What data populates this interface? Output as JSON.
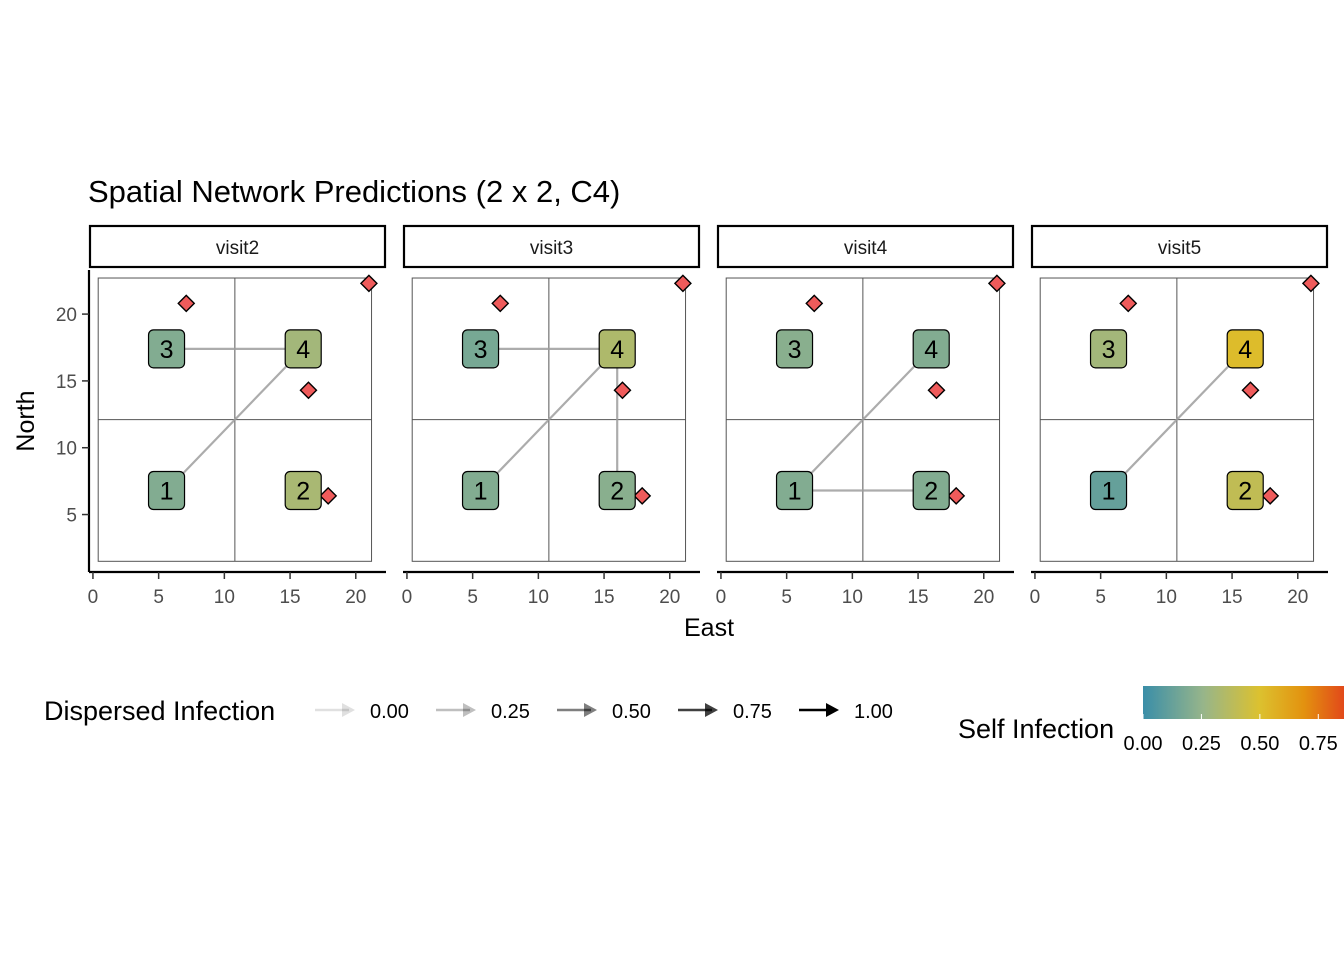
{
  "chart_data": {
    "type": "network",
    "title": "Spatial Network Predictions (2 x 2, C4)",
    "xlabel": "East",
    "ylabel": "North",
    "xlim": [
      -0.3,
      22.3
    ],
    "ylim": [
      0.7,
      23.3
    ],
    "x_ticks": [
      0,
      5,
      10,
      15,
      20
    ],
    "y_ticks": [
      5,
      10,
      15,
      20
    ],
    "grid_boundaries": {
      "x": [
        0.4,
        10.8,
        21.2
      ],
      "y": [
        1.5,
        12.1,
        22.7
      ]
    },
    "nodes": [
      {
        "id": "1",
        "x": 5.6,
        "y": 6.8
      },
      {
        "id": "2",
        "x": 16.0,
        "y": 6.8
      },
      {
        "id": "3",
        "x": 5.6,
        "y": 17.4
      },
      {
        "id": "4",
        "x": 16.0,
        "y": 17.4
      }
    ],
    "diamonds": [
      {
        "x": 7.1,
        "y": 20.8
      },
      {
        "x": 21.0,
        "y": 22.3
      },
      {
        "x": 16.4,
        "y": 14.3
      },
      {
        "x": 17.9,
        "y": 6.4
      }
    ],
    "facets": [
      {
        "label": "visit2",
        "self_infection": {
          "1": 0.2,
          "2": 0.32,
          "3": 0.2,
          "4": 0.3
        },
        "edges": [
          {
            "from": "4",
            "to": "3",
            "value": 0.25
          },
          {
            "from": "4",
            "to": "1",
            "value": 0.25
          }
        ]
      },
      {
        "label": "visit3",
        "self_infection": {
          "1": 0.2,
          "2": 0.22,
          "3": 0.17,
          "4": 0.34
        },
        "edges": [
          {
            "from": "4",
            "to": "3",
            "value": 0.25
          },
          {
            "from": "4",
            "to": "1",
            "value": 0.25
          },
          {
            "from": "4",
            "to": "2",
            "value": 0.25
          }
        ]
      },
      {
        "label": "visit4",
        "self_infection": {
          "1": 0.2,
          "2": 0.2,
          "3": 0.22,
          "4": 0.2
        },
        "edges": [
          {
            "from": "1",
            "to": "4",
            "value": 0.25
          },
          {
            "from": "1",
            "to": "2",
            "value": 0.25
          }
        ]
      },
      {
        "label": "visit5",
        "self_infection": {
          "1": 0.12,
          "2": 0.4,
          "3": 0.3,
          "4": 0.52
        },
        "edges": [
          {
            "from": "4",
            "to": "1",
            "value": 0.25
          }
        ]
      }
    ],
    "legend_dispersed": {
      "title": "Dispersed Infection",
      "entries": [
        "0.00",
        "0.25",
        "0.50",
        "0.75",
        "1.00"
      ],
      "values": [
        0.0,
        0.25,
        0.5,
        0.75,
        1.0
      ]
    },
    "legend_self": {
      "title": "Self Infection",
      "ticks": [
        "0.00",
        "0.25",
        "0.50",
        "0.75"
      ],
      "tick_values": [
        0.0,
        0.25,
        0.5,
        0.75
      ],
      "range": [
        0.0,
        0.86
      ],
      "colors": [
        "#3a8ea8",
        "#97b58a",
        "#dcc12f",
        "#e3920f",
        "#e2491a"
      ]
    },
    "colors": {
      "diamond": "#ef5b5b",
      "edge": "#9e9e9e",
      "grid": "#555555"
    }
  }
}
